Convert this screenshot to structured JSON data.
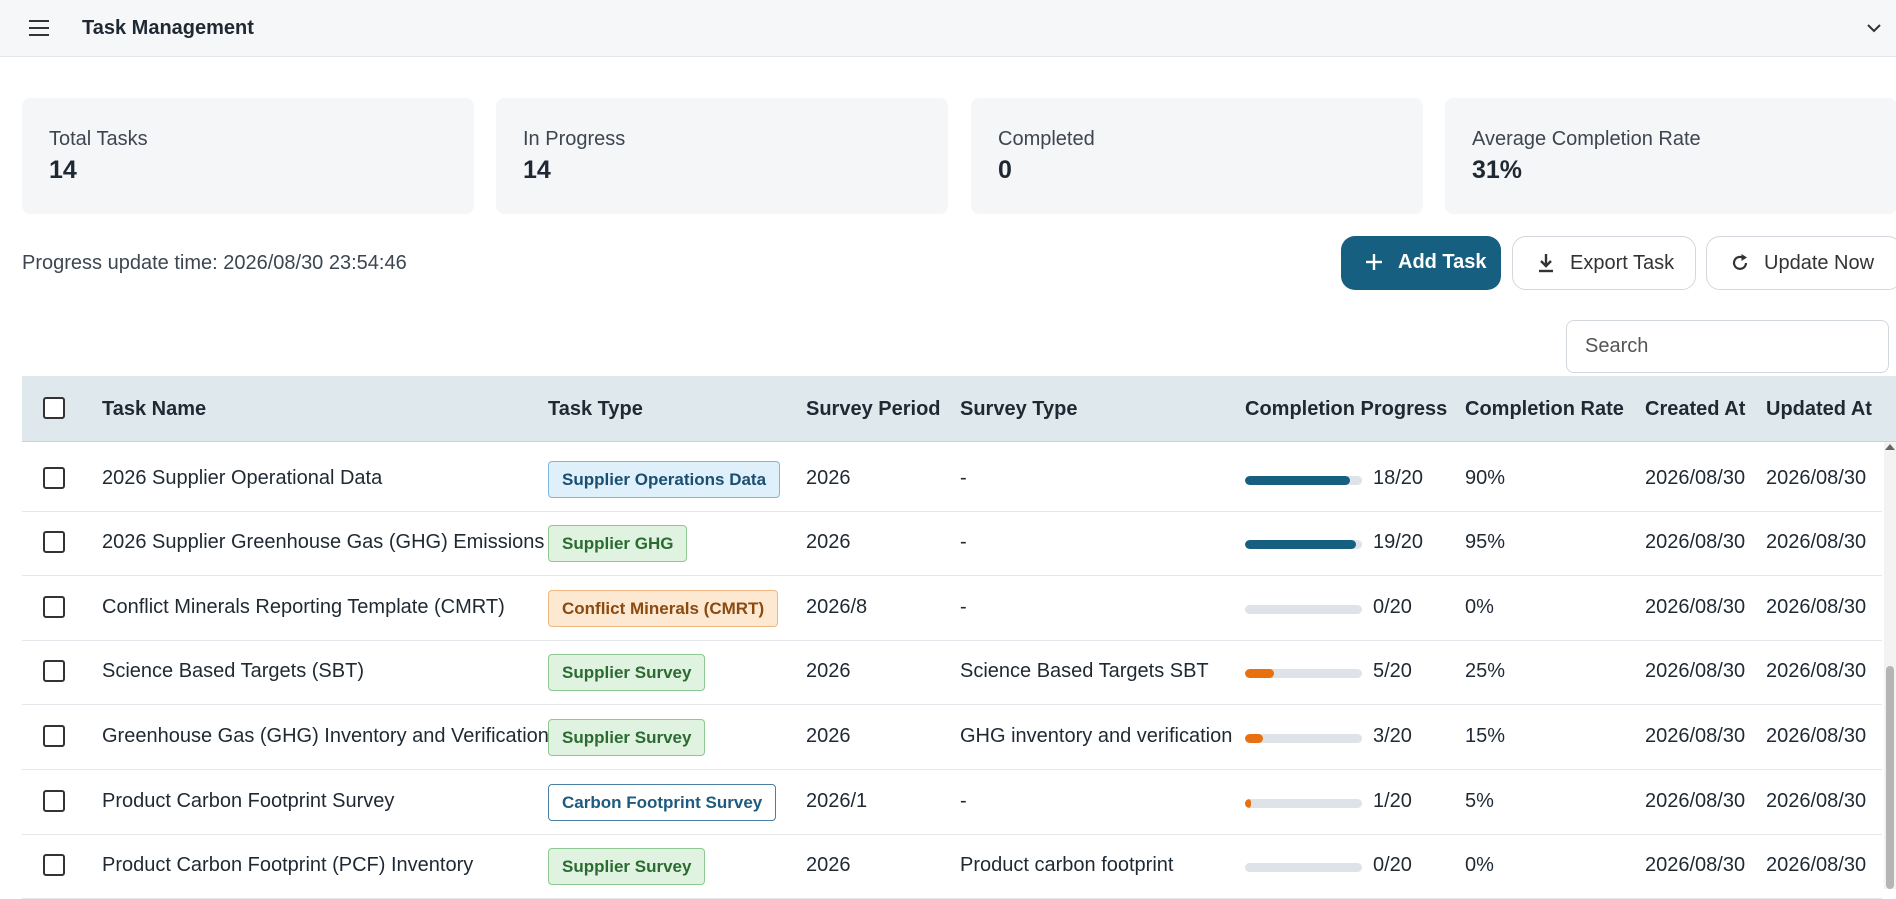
{
  "app": {
    "title": "Task Management"
  },
  "stats": [
    {
      "label": "Total Tasks",
      "value": "14"
    },
    {
      "label": "In Progress",
      "value": "14"
    },
    {
      "label": "Completed",
      "value": "0"
    },
    {
      "label": "Average Completion Rate",
      "value": "31%"
    }
  ],
  "progress_update": "Progress update time: 2026/08/30 23:54:46",
  "toolbar": {
    "add_label": "Add Task",
    "export_label": "Export Task",
    "update_label": "Update Now"
  },
  "search": {
    "placeholder": "Search"
  },
  "table": {
    "columns": [
      "Task Name",
      "Task Type",
      "Survey Period",
      "Survey Type",
      "Completion Progress",
      "Completion Rate",
      "Created At",
      "Updated At"
    ],
    "rows": [
      {
        "name": "2026 Supplier Operational Data",
        "type": "Supplier Operations Data",
        "type_style": "blue",
        "period": "2026",
        "survey_type": "-",
        "progress": 0.9,
        "progress_text": "18/20",
        "rate": "90%",
        "created": "2026/08/30",
        "updated": "2026/08/30"
      },
      {
        "name": "2026 Supplier Greenhouse Gas (GHG) Emissions",
        "type": "Supplier GHG",
        "type_style": "green",
        "period": "2026",
        "survey_type": "-",
        "progress": 0.95,
        "progress_text": "19/20",
        "rate": "95%",
        "created": "2026/08/30",
        "updated": "2026/08/30"
      },
      {
        "name": "Conflict Minerals Reporting Template (CMRT)",
        "type": "Conflict Minerals (CMRT)",
        "type_style": "orange",
        "period": "2026/8",
        "survey_type": "-",
        "progress": 0,
        "progress_text": "0/20",
        "rate": "0%",
        "created": "2026/08/30",
        "updated": "2026/08/30"
      },
      {
        "name": "Science Based Targets (SBT)",
        "type": "Supplier Survey",
        "type_style": "green",
        "period": "2026",
        "survey_type": "Science Based Targets SBT",
        "progress": 0.25,
        "progress_text": "5/20",
        "rate": "25%",
        "created": "2026/08/30",
        "updated": "2026/08/30"
      },
      {
        "name": "Greenhouse Gas (GHG) Inventory and Verification",
        "type": "Supplier Survey",
        "type_style": "green",
        "period": "2026",
        "survey_type": "GHG inventory and verification",
        "progress": 0.15,
        "progress_text": "3/20",
        "rate": "15%",
        "created": "2026/08/30",
        "updated": "2026/08/30"
      },
      {
        "name": "Product Carbon Footprint Survey",
        "type": "Carbon Footprint Survey",
        "type_style": "outline",
        "period": "2026/1",
        "survey_type": "-",
        "progress": 0.05,
        "progress_text": "1/20",
        "rate": "5%",
        "created": "2026/08/30",
        "updated": "2026/08/30"
      },
      {
        "name": "Product Carbon Footprint (PCF) Inventory",
        "type": "Supplier Survey",
        "type_style": "green",
        "period": "2026",
        "survey_type": "Product carbon footprint",
        "progress": 0,
        "progress_text": "0/20",
        "rate": "0%",
        "created": "2026/08/30",
        "updated": "2026/08/30"
      }
    ]
  },
  "colors": {
    "primary": "#165f80",
    "progress_high": "#165f80",
    "progress_low": "#e8700f",
    "header_bg": "#dfe8ec"
  },
  "icons": {
    "menu": "menu-icon",
    "chevron": "chevron-down-icon",
    "add": "plus-icon",
    "export": "download-icon",
    "update": "refresh-icon"
  }
}
